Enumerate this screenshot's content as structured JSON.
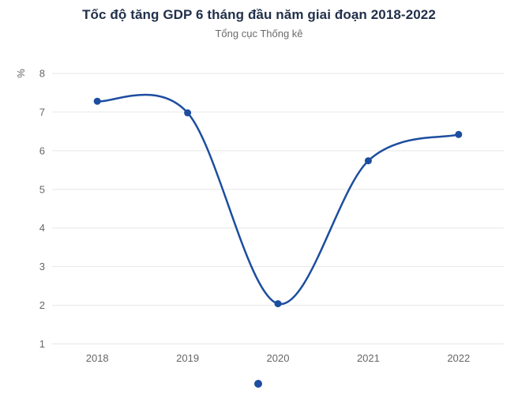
{
  "chart_data": {
    "type": "line",
    "title": "Tốc độ tăng GDP 6 tháng đầu năm giai đoạn 2018-2022",
    "subtitle": "Tổng cục Thống kê",
    "categories": [
      "2018",
      "2019",
      "2020",
      "2021",
      "2022"
    ],
    "values": [
      7.28,
      6.98,
      2.04,
      5.74,
      6.42
    ],
    "xlabel": "",
    "ylabel": "%",
    "ylim": [
      1,
      8
    ],
    "yticks": [
      1,
      2,
      3,
      4,
      5,
      6,
      7,
      8
    ],
    "grid": true,
    "legend_position": "bottom",
    "legend_label": "",
    "marker": "circle",
    "colors": {
      "series": "#1c4da0",
      "grid": "#e6e6e6",
      "axis_label": "#666666",
      "axis_title": "#666666",
      "title": "#22304a",
      "subtitle": "#6b6b6b",
      "background": "#ffffff"
    }
  }
}
